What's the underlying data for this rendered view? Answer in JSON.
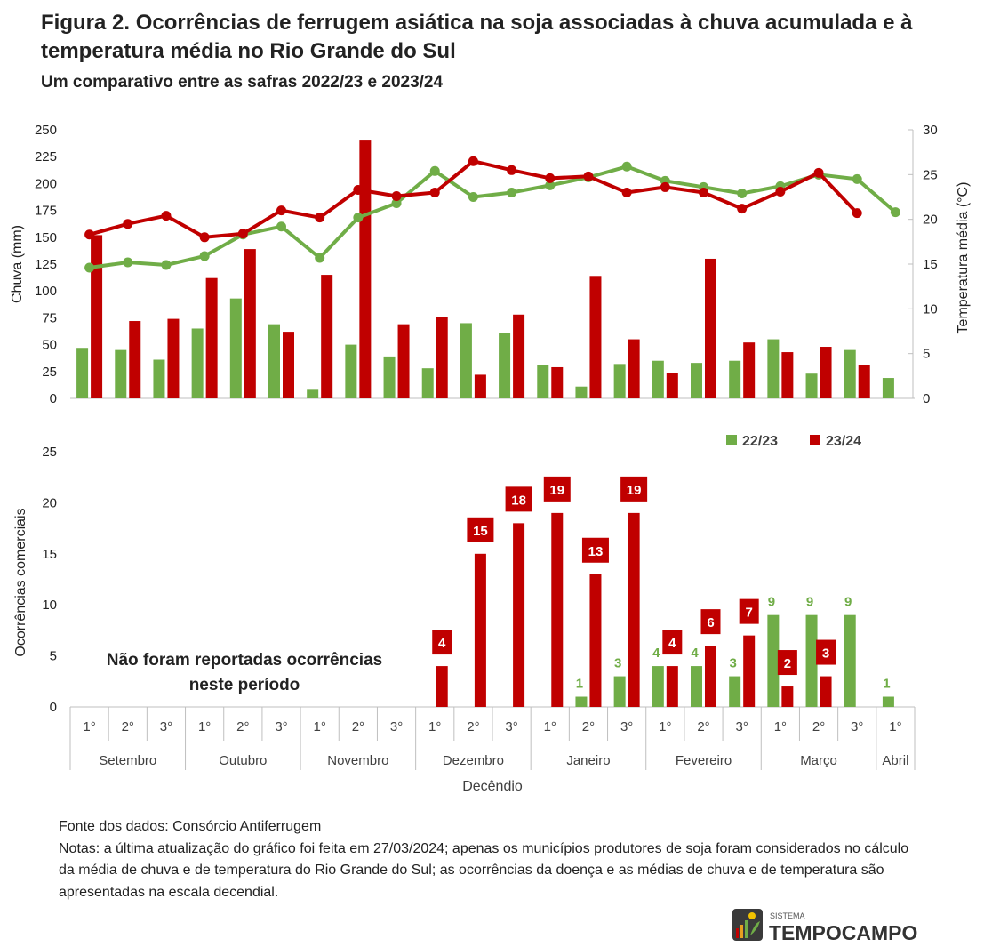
{
  "header": {
    "title": "Figura 2. Ocorrências de ferrugem asiática na soja associadas à chuva acumulada e à temperatura média no Rio Grande do Sul",
    "subtitle": "Um comparativo entre as safras 2022/23 e 2023/24"
  },
  "footer": {
    "source": "Fonte dos dados: Consórcio Antiferrugem",
    "notes": "Notas: a última atualização do gráfico foi feita em 27/03/2024;  apenas os municípios produtores de soja foram considerados no cálculo da média de chuva e de temperatura do Rio Grande do Sul; as ocorrências da doença e as médias de chuva e de temperatura são apresentadas na escala decendial."
  },
  "logo": {
    "small": "SISTEMA",
    "main": "TEMPOCAMPO"
  },
  "colors": {
    "s2223": "#70ad47",
    "s2324": "#c00000",
    "axis": "#bfbfbf",
    "text": "#404040"
  },
  "chart_data": [
    {
      "type": "bar",
      "title": "",
      "ylabel": "Chuva (mm)",
      "y2label": "Temperatura média (°C)",
      "ylim": [
        0,
        250
      ],
      "y2lim": [
        0,
        30
      ],
      "yticks": [
        0,
        25,
        50,
        75,
        100,
        125,
        150,
        175,
        200,
        225,
        250
      ],
      "y2ticks": [
        0,
        5,
        10,
        15,
        20,
        25,
        30
      ],
      "series": [
        {
          "name": "22/23",
          "kind": "bar",
          "values": [
            47,
            45,
            36,
            65,
            93,
            69,
            8,
            50,
            39,
            28,
            70,
            61,
            31,
            11,
            32,
            35,
            33,
            35,
            55,
            23,
            45,
            19
          ]
        },
        {
          "name": "23/24",
          "kind": "bar",
          "values": [
            152,
            72,
            74,
            112,
            139,
            62,
            115,
            240,
            69,
            76,
            22,
            78,
            29,
            114,
            55,
            24,
            130,
            52,
            43,
            48,
            31,
            null
          ]
        },
        {
          "name": "22/23",
          "kind": "line",
          "axis": "y2",
          "values": [
            14.6,
            15.2,
            14.9,
            15.9,
            18.3,
            19.2,
            15.7,
            20.2,
            21.8,
            25.4,
            22.5,
            23.0,
            23.8,
            24.7,
            25.9,
            24.3,
            23.6,
            22.9,
            23.7,
            25.0,
            24.5,
            20.8
          ]
        },
        {
          "name": "23/24",
          "kind": "line",
          "axis": "y2",
          "values": [
            18.3,
            19.5,
            20.4,
            18.0,
            18.4,
            21.0,
            20.2,
            23.3,
            22.6,
            23.0,
            26.5,
            25.5,
            24.6,
            24.8,
            23.0,
            23.6,
            23.0,
            21.2,
            23.1,
            25.2,
            20.7,
            null
          ]
        }
      ]
    },
    {
      "type": "bar",
      "title": "",
      "ylabel": "Ocorrências comerciais",
      "xlabel": "Decêndio",
      "ylim": [
        0,
        25
      ],
      "yticks": [
        0,
        5,
        10,
        15,
        20,
        25
      ],
      "legend": [
        {
          "name": "22/23"
        },
        {
          "name": "23/24"
        }
      ],
      "legend_position": "top-right",
      "annotation": "Não foram reportadas ocorrências neste período",
      "decendios": [
        "1°",
        "2°",
        "3°",
        "1°",
        "2°",
        "3°",
        "1°",
        "2°",
        "3°",
        "1°",
        "2°",
        "3°",
        "1°",
        "2°",
        "3°",
        "1°",
        "2°",
        "3°",
        "1°",
        "2°",
        "3°",
        "1°"
      ],
      "months": [
        {
          "name": "Setembro",
          "count": 3
        },
        {
          "name": "Outubro",
          "count": 3
        },
        {
          "name": "Novembro",
          "count": 3
        },
        {
          "name": "Dezembro",
          "count": 3
        },
        {
          "name": "Janeiro",
          "count": 3
        },
        {
          "name": "Fevereiro",
          "count": 3
        },
        {
          "name": "Março",
          "count": 3
        },
        {
          "name": "Abril",
          "count": 1
        }
      ],
      "series": [
        {
          "name": "22/23",
          "values": [
            null,
            null,
            null,
            null,
            null,
            null,
            null,
            null,
            null,
            null,
            null,
            null,
            null,
            1,
            3,
            4,
            4,
            3,
            9,
            9,
            9,
            1
          ]
        },
        {
          "name": "23/24",
          "values": [
            null,
            null,
            null,
            null,
            null,
            null,
            null,
            null,
            null,
            4,
            15,
            18,
            19,
            13,
            19,
            4,
            6,
            7,
            2,
            3,
            null,
            null
          ]
        }
      ]
    }
  ]
}
